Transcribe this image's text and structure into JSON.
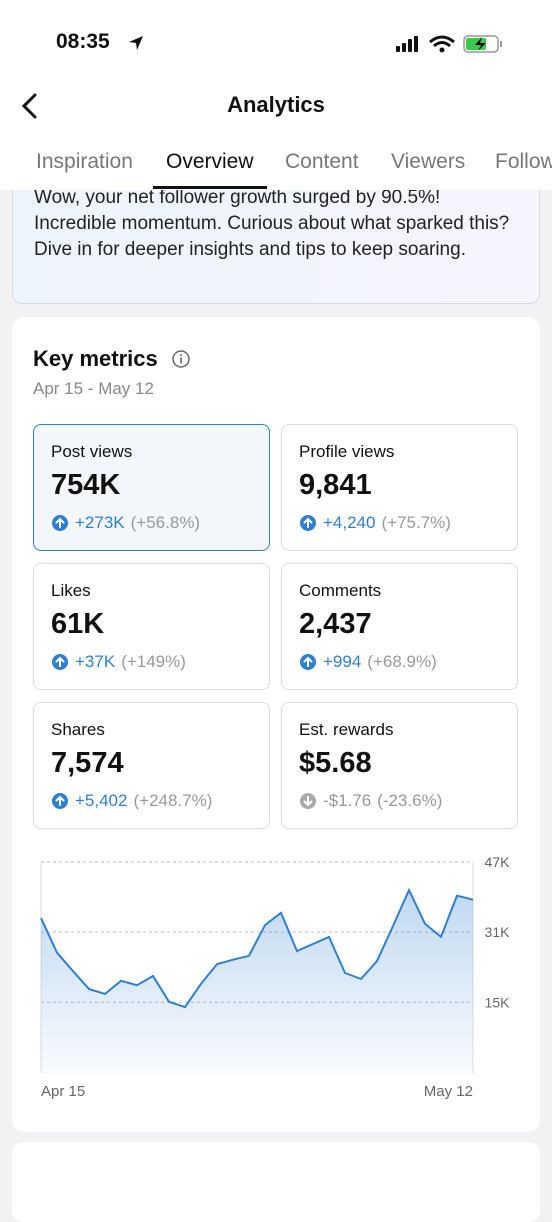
{
  "status_bar": {
    "time": "08:35"
  },
  "header": {
    "title": "Analytics"
  },
  "tabs": [
    "Inspiration",
    "Overview",
    "Content",
    "Viewers",
    "Followers"
  ],
  "active_tab": 1,
  "banner": {
    "text": "Wow, your net follower growth surged by 90.5%! Incredible momentum. Curious about what sparked this? Dive in for deeper insights and tips to keep soaring."
  },
  "key_metrics": {
    "title": "Key metrics",
    "date_range": "Apr 15 - May 12",
    "tiles": [
      {
        "label": "Post views",
        "value": "754K",
        "change": "+273K",
        "percent": "(+56.8%)"
      },
      {
        "label": "Profile views",
        "value": "9,841",
        "change": "+4,240",
        "percent": "(+75.7%)"
      },
      {
        "label": "Likes",
        "value": "61K",
        "change": "+37K",
        "percent": "(+149%)"
      },
      {
        "label": "Comments",
        "value": "2,437",
        "change": "+994",
        "percent": "(+68.9%)"
      },
      {
        "label": "Shares",
        "value": "7,574",
        "change": "+5,402",
        "percent": "(+248.7%)"
      },
      {
        "label": "Est. rewards",
        "value": "$5.68",
        "change": "-$1.76",
        "percent": "(-23.6%)"
      }
    ]
  },
  "chart_data": {
    "type": "area",
    "color": "#2f7fd1",
    "categories": [
      "Apr 15",
      null,
      null,
      null,
      null,
      null,
      null,
      null,
      null,
      null,
      null,
      null,
      null,
      null,
      null,
      null,
      null,
      null,
      null,
      null,
      null,
      null,
      null,
      null,
      null,
      null,
      null,
      "May 12"
    ],
    "values": [
      34.2,
      26.3,
      22.1,
      18.0,
      16.9,
      19.9,
      18.9,
      21.0,
      15.1,
      13.9,
      19.2,
      23.7,
      24.7,
      25.6,
      32.6,
      35.4,
      26.7,
      28.3,
      29.9,
      21.7,
      20.3,
      24.4,
      32.4,
      40.6,
      32.9,
      29.9,
      39.3,
      38.4
    ],
    "ylim": [
      0,
      47
    ],
    "yticks": [
      {
        "value": 15,
        "label": "15K"
      },
      {
        "value": 31,
        "label": "31K"
      },
      {
        "value": 47,
        "label": "47K"
      }
    ],
    "grid": true
  }
}
